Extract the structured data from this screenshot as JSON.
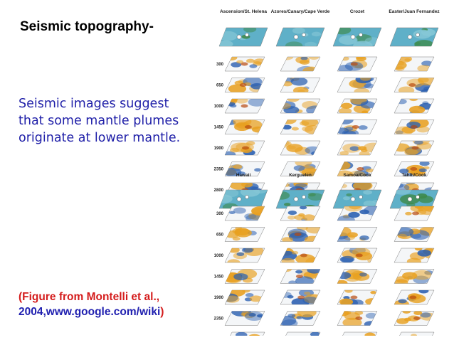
{
  "slide": {
    "title": "Seismic topography-",
    "body_lines": [
      "Seismic images suggest",
      "that some mantle plumes",
      "originate at lower mantle."
    ],
    "citation": {
      "line1": "(Figure from Montelli et al.,",
      "line2_blue": "2004,www.google.com/wiki",
      "line2_end": ")"
    }
  },
  "figure": {
    "top_hotspots": [
      "Ascension/St. Helena",
      "Azores/Canary/Cape Verde",
      "Crozet",
      "Easter/Juan Fernandez"
    ],
    "bottom_hotspots": [
      "Hawaii",
      "Kerguelen",
      "Samoa/Cook",
      "Tahiti/Cook"
    ],
    "depths": [
      "300",
      "650",
      "1000",
      "1450",
      "1900",
      "2350",
      "2800"
    ],
    "colors": {
      "slow": "#e8a020",
      "fast": "#2a5fb0",
      "map": "#5fb0c8",
      "panel": "#f4f6f8"
    }
  }
}
